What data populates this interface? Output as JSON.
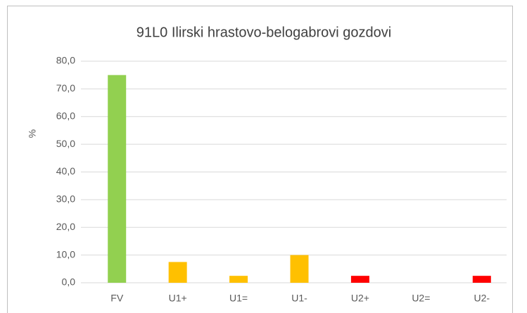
{
  "chart_data": {
    "type": "bar",
    "title": "91L0 Ilirski hrastovo-belogabrovi gozdovi",
    "y_label": "%",
    "categories": [
      "FV",
      "U1+",
      "U1=",
      "U1-",
      "U2+",
      "U2=",
      "U2-"
    ],
    "values": [
      75,
      7.5,
      2.5,
      10,
      2.5,
      0,
      2.5
    ],
    "colors": [
      "#92d050",
      "#ffc000",
      "#ffc000",
      "#ffc000",
      "#ff0000",
      "#ff0000",
      "#ff0000"
    ],
    "ylim": [
      0,
      80
    ],
    "yticks": [
      {
        "value": 0,
        "label": "0,0"
      },
      {
        "value": 10,
        "label": "10,0"
      },
      {
        "value": 20,
        "label": "20,0"
      },
      {
        "value": 30,
        "label": "30,0"
      },
      {
        "value": 40,
        "label": "40,0"
      },
      {
        "value": 50,
        "label": "50,0"
      },
      {
        "value": 60,
        "label": "60,0"
      },
      {
        "value": 70,
        "label": "70,0"
      },
      {
        "value": 80,
        "label": "80,0"
      }
    ],
    "grid": true
  }
}
